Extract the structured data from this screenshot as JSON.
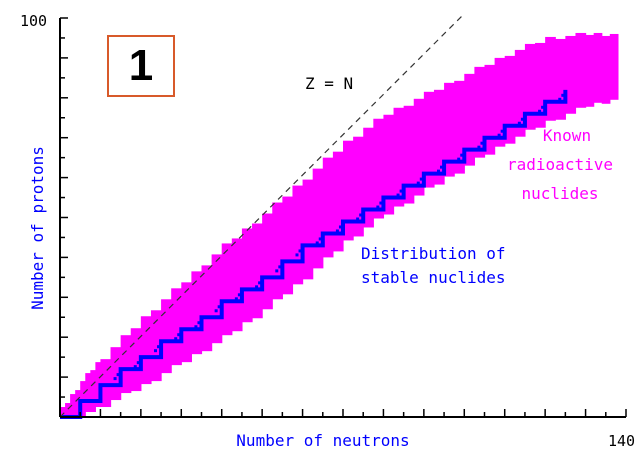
{
  "badge": "1",
  "colors": {
    "axis": "#000000",
    "dashed_line": "#333333",
    "radioactive": "#ff00ff",
    "stable": "#0000ff",
    "label_text": "#0000ff",
    "badge_border": "#d85a2a"
  },
  "chart_data": {
    "type": "scatter",
    "xlabel": "Number of neutrons",
    "ylabel": "Number of protons",
    "xlim": [
      0,
      140
    ],
    "ylim": [
      0,
      100
    ],
    "x_tick_labels": [
      "140"
    ],
    "y_tick_labels": [
      "100"
    ],
    "reference_line": {
      "label": "Z = N"
    },
    "annotations": {
      "radioactive": [
        "Known",
        "radioactive",
        "nuclides"
      ],
      "stable": [
        "Distribution of",
        "stable nuclides"
      ]
    },
    "series": [
      {
        "name": "Known radioactive nuclides",
        "color": "#ff00ff",
        "band": [
          {
            "n": 0,
            "zlow": 0,
            "zhigh": 2
          },
          {
            "n": 5,
            "zlow": 0,
            "zhigh": 9
          },
          {
            "n": 10,
            "zlow": 3,
            "zhigh": 15
          },
          {
            "n": 20,
            "zlow": 8,
            "zhigh": 25
          },
          {
            "n": 30,
            "zlow": 14,
            "zhigh": 34
          },
          {
            "n": 40,
            "zlow": 20,
            "zhigh": 43
          },
          {
            "n": 50,
            "zlow": 27,
            "zhigh": 51
          },
          {
            "n": 60,
            "zlow": 35,
            "zhigh": 60
          },
          {
            "n": 70,
            "zlow": 44,
            "zhigh": 69
          },
          {
            "n": 80,
            "zlow": 51,
            "zhigh": 76
          },
          {
            "n": 90,
            "zlow": 57,
            "zhigh": 81
          },
          {
            "n": 100,
            "zlow": 63,
            "zhigh": 86
          },
          {
            "n": 110,
            "zlow": 69,
            "zhigh": 91
          },
          {
            "n": 120,
            "zlow": 74,
            "zhigh": 95
          },
          {
            "n": 130,
            "zlow": 78,
            "zhigh": 96
          },
          {
            "n": 138,
            "zlow": 80,
            "zhigh": 96
          }
        ]
      },
      {
        "name": "Distribution of stable nuclides",
        "color": "#0000ff",
        "points": [
          [
            0,
            0
          ],
          [
            5,
            4
          ],
          [
            10,
            8
          ],
          [
            15,
            12
          ],
          [
            20,
            15
          ],
          [
            25,
            19
          ],
          [
            30,
            22
          ],
          [
            35,
            25
          ],
          [
            40,
            29
          ],
          [
            45,
            32
          ],
          [
            50,
            35
          ],
          [
            55,
            39
          ],
          [
            60,
            43
          ],
          [
            65,
            46
          ],
          [
            70,
            49
          ],
          [
            75,
            52
          ],
          [
            80,
            55
          ],
          [
            85,
            58
          ],
          [
            90,
            61
          ],
          [
            95,
            64
          ],
          [
            100,
            67
          ],
          [
            105,
            70
          ],
          [
            110,
            73
          ],
          [
            115,
            76
          ],
          [
            120,
            79
          ],
          [
            125,
            82
          ]
        ]
      }
    ]
  }
}
